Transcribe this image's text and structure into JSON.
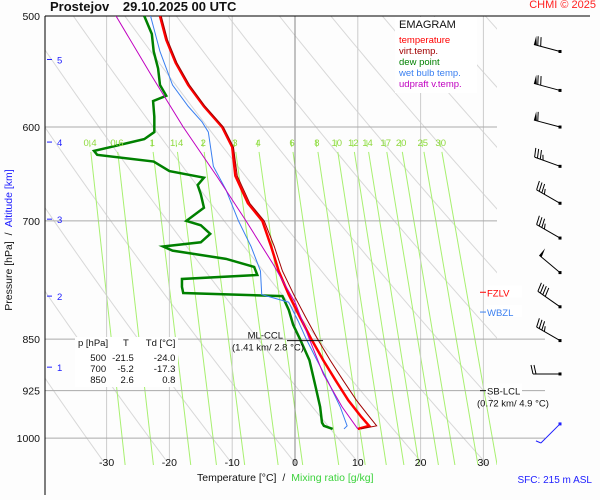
{
  "header": {
    "station": "Prostejov",
    "datetime": "29.10.2025 00 UTC",
    "credit": "CHMI © 2025"
  },
  "chart_data": {
    "type": "line",
    "title": "EMAGRAM",
    "xlabel": "Temperature [°C]",
    "xlabel_sep": "/",
    "xlabel2": "Mixing ratio [g/kg]",
    "ylabel": "Pressure [hPa]",
    "ylabel_sep": "/",
    "ylabel2": "Altitude [km]",
    "xlim": [
      -38,
      34
    ],
    "ylim_hpa": [
      500,
      1045
    ],
    "y_scale": "log",
    "x_ticks": [
      "-30",
      "-20",
      "-10",
      "0",
      "10",
      "20",
      "30"
    ],
    "y_ticks": [
      "500",
      "600",
      "700",
      "850",
      "925",
      "1000"
    ],
    "altitude_ticks_km": [
      "1",
      "2",
      "3",
      "4",
      "5"
    ],
    "altitude_tick_pressures": [
      890,
      792,
      698,
      615,
      537
    ],
    "mixing_ratio_labels": [
      "0.4",
      "0.6",
      "1",
      "1.4",
      "2",
      "3",
      "4",
      "6",
      "8",
      "10",
      "12",
      "14",
      "17",
      "20",
      "25",
      "30"
    ],
    "legend": [
      {
        "label": "temperature",
        "color": "#ff0000"
      },
      {
        "label": "virt.temp.",
        "color": "#a00000"
      },
      {
        "label": "dew point",
        "color": "#008000"
      },
      {
        "label": "wet bulb temp.",
        "color": "#3a7ff0"
      },
      {
        "label": "udpraft v.temp.",
        "color": "#c000c0"
      }
    ],
    "series": [
      {
        "name": "temperature",
        "p": [
          500,
          520,
          540,
          560,
          580,
          600,
          620,
          650,
          680,
          700,
          730,
          760,
          790,
          820,
          850,
          880,
          910,
          940,
          965,
          980,
          985
        ],
        "t": [
          -21.5,
          -20.5,
          -19,
          -17,
          -14.5,
          -11.6,
          -10,
          -9.5,
          -7.5,
          -5.2,
          -3.8,
          -2.6,
          -1,
          0.8,
          2.6,
          4.5,
          6.5,
          8.5,
          10.5,
          11.8,
          10
        ]
      },
      {
        "name": "virt.temp.",
        "p": [
          500,
          520,
          540,
          560,
          580,
          600,
          620,
          650,
          680,
          700,
          730,
          760,
          790,
          820,
          850,
          880,
          910,
          940,
          965,
          980,
          985
        ],
        "t": [
          -21.3,
          -20.3,
          -18.8,
          -16.8,
          -14.3,
          -11.4,
          -9.8,
          -9.2,
          -7.2,
          -4.9,
          -3.3,
          -2.0,
          -0.2,
          1.7,
          3.6,
          5.6,
          7.7,
          9.8,
          11.8,
          13,
          10.5
        ]
      },
      {
        "name": "dew point",
        "p": [
          500,
          515,
          530,
          545,
          560,
          570,
          575,
          590,
          605,
          612,
          618,
          624,
          628,
          635,
          645,
          652,
          660,
          670,
          685,
          700,
          705,
          715,
          725,
          730,
          735,
          745,
          755,
          765,
          770,
          780,
          788,
          792,
          810,
          830,
          850,
          880,
          920,
          950,
          975,
          980,
          985
        ],
        "t": [
          -24,
          -22.8,
          -22.5,
          -21.8,
          -21.5,
          -20.5,
          -22.6,
          -22.4,
          -22.4,
          -24,
          -28,
          -32,
          -31.5,
          -22.5,
          -20,
          -14.5,
          -15.5,
          -15,
          -14.5,
          -17.3,
          -15,
          -13.5,
          -15,
          -21,
          -19.5,
          -11,
          -6.5,
          -6,
          -18,
          -18,
          -17.8,
          -2,
          -1,
          -0.3,
          0.8,
          2.3,
          3.3,
          4,
          4.3,
          4.6,
          6
        ]
      },
      {
        "name": "wet bulb temp.",
        "p": [
          500,
          530,
          560,
          580,
          595,
          605,
          640,
          665,
          700,
          730,
          760,
          790,
          800,
          825,
          850,
          880,
          910,
          950,
          980,
          985
        ],
        "t": [
          -23,
          -21.5,
          -19.5,
          -17,
          -14.8,
          -13.8,
          -13,
          -11,
          -9,
          -7,
          -5.5,
          -5.3,
          -1,
          0.5,
          1.8,
          3.5,
          5.2,
          7.2,
          8.3,
          7.8
        ]
      },
      {
        "name": "udpraft v.temp.",
        "p": [
          500,
          550,
          600,
          650,
          700,
          750,
          800,
          850,
          900,
          950,
          985
        ],
        "t": [
          -28.5,
          -23,
          -17.8,
          -12.5,
          -7.8,
          -3.6,
          0,
          2.3,
          4.5,
          7.5,
          10
        ]
      }
    ],
    "table": {
      "headers": [
        "p [hPa]",
        "T",
        "Td [°C]"
      ],
      "rows": [
        [
          "500",
          "-21.5",
          "-24.0"
        ],
        [
          "700",
          "-5.2",
          "-17.3"
        ],
        [
          "850",
          "2.6",
          "0.8"
        ]
      ]
    },
    "annotations": [
      {
        "label": "FZLV",
        "p": 787,
        "color": "#ff0000"
      },
      {
        "label": "WBZL",
        "p": 813,
        "color": "#3a7ff0"
      },
      {
        "label": "SB-LCL",
        "detail": "(0.72 km/ 4.9 °C)",
        "p": 925
      },
      {
        "label": "ML-CCL",
        "detail": "(1.41 km/ 2.8 °C)",
        "p": 852
      }
    ],
    "winds": [
      {
        "p": 530,
        "dir": 285,
        "kt": 70
      },
      {
        "p": 565,
        "dir": 285,
        "kt": 70
      },
      {
        "p": 600,
        "dir": 285,
        "kt": 60
      },
      {
        "p": 640,
        "dir": 290,
        "kt": 35
      },
      {
        "p": 680,
        "dir": 300,
        "kt": 35
      },
      {
        "p": 720,
        "dir": 300,
        "kt": 35
      },
      {
        "p": 762,
        "dir": 310,
        "kt": 50
      },
      {
        "p": 806,
        "dir": 305,
        "kt": 40
      },
      {
        "p": 852,
        "dir": 300,
        "kt": 35
      },
      {
        "p": 900,
        "dir": 270,
        "kt": 20
      },
      {
        "p": 985,
        "dir": 225,
        "kt": 5,
        "surface": true
      }
    ],
    "surface": "SFC: 215 m ASL",
    "grid": true
  }
}
